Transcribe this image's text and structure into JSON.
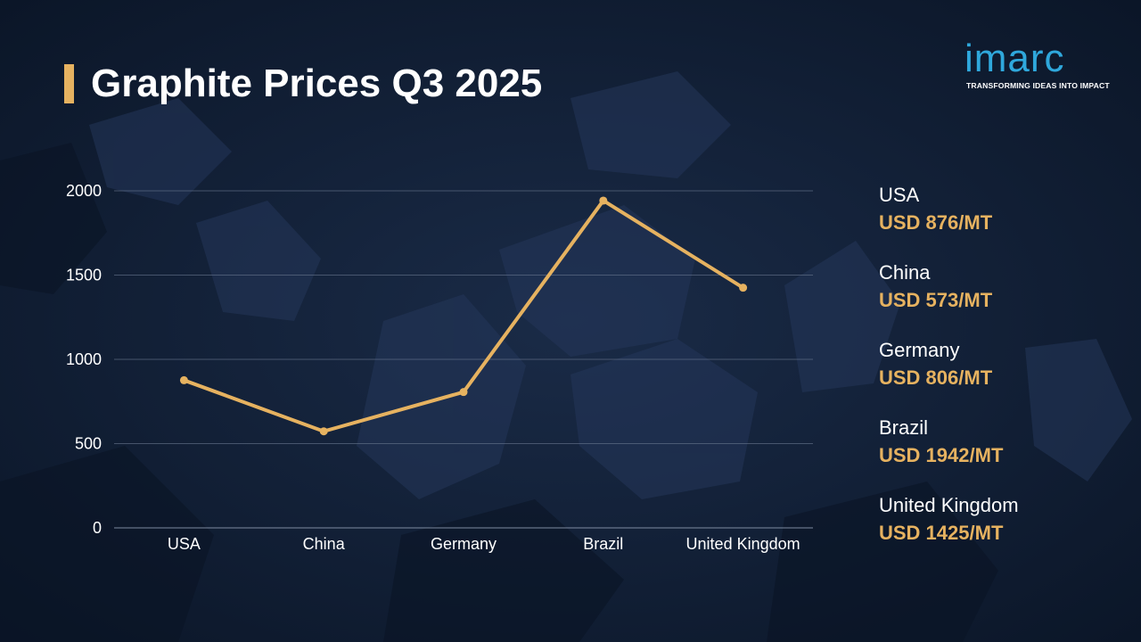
{
  "title": "Graphite Prices Q3 2025",
  "logo": {
    "word": "imarc",
    "tagline": "TRANSFORMING IDEAS INTO IMPACT"
  },
  "colors": {
    "accent": "#e6b260",
    "background": "#0f1d33",
    "logo": "#2fa8dc",
    "grid": "#6a7890"
  },
  "chart_data": {
    "type": "line",
    "title": "Graphite Prices Q3 2025",
    "categories": [
      "USA",
      "China",
      "Germany",
      "Brazil",
      "United Kingdom"
    ],
    "series": [
      {
        "values": [
          876,
          573,
          806,
          1942,
          1425
        ]
      }
    ],
    "ylim": [
      0,
      2000
    ],
    "yticks": [
      0,
      500,
      1000,
      1500,
      2000
    ],
    "grid": true,
    "legend": "right"
  },
  "legend": [
    {
      "country": "USA",
      "price": "USD 876/MT"
    },
    {
      "country": "China",
      "price": "USD 573/MT"
    },
    {
      "country": "Germany",
      "price": "USD 806/MT"
    },
    {
      "country": "Brazil",
      "price": "USD 1942/MT"
    },
    {
      "country": "United Kingdom",
      "price": "USD 1425/MT"
    }
  ]
}
